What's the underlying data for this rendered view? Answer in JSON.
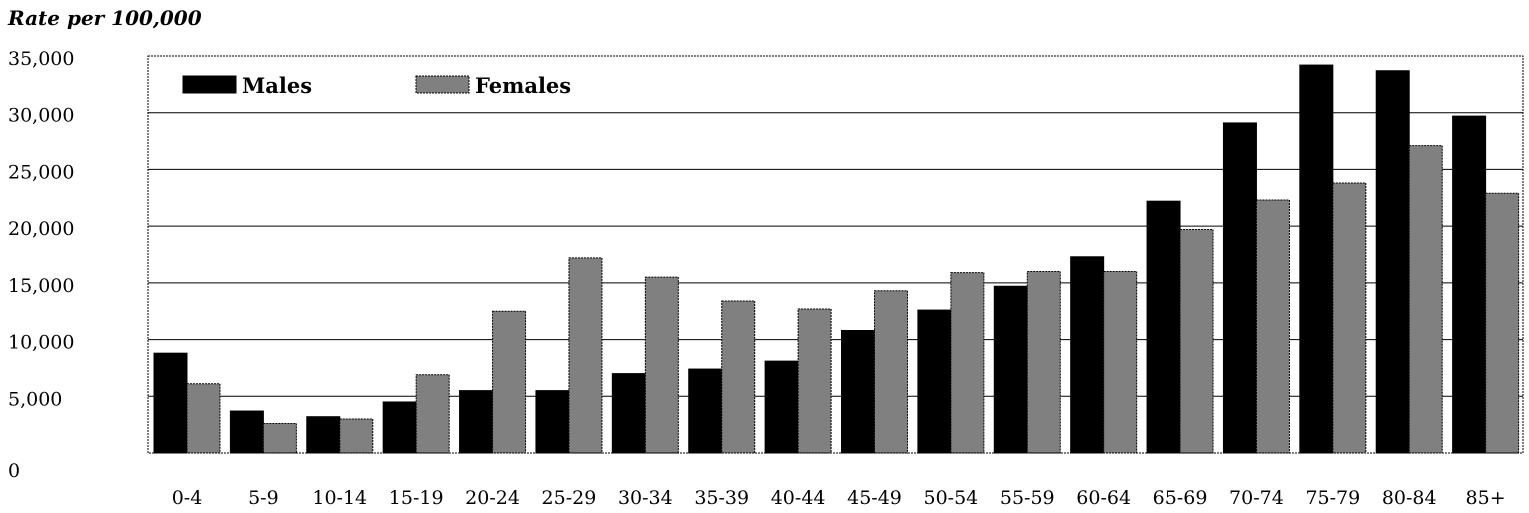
{
  "chart_data": {
    "type": "bar",
    "title": "",
    "unit_label": "Rate per 100,000",
    "xlabel": "",
    "ylabel": "",
    "ylim": [
      0,
      35000
    ],
    "ytick_labels": [
      "0",
      "5,000",
      "10,000",
      "15,000",
      "20,000",
      "25,000",
      "30,000",
      "35,000"
    ],
    "yticks": [
      0,
      5000,
      10000,
      15000,
      20000,
      25000,
      30000,
      35000
    ],
    "grid": true,
    "legend_position": "top-left",
    "categories": [
      "0-4",
      "5-9",
      "10-14",
      "15-19",
      "20-24",
      "25-29",
      "30-34",
      "35-39",
      "40-44",
      "45-49",
      "50-54",
      "55-59",
      "60-64",
      "65-69",
      "70-74",
      "75-79",
      "80-84",
      "85+"
    ],
    "series": [
      {
        "name": "Males",
        "color": "#000000",
        "values": [
          8800,
          3700,
          3200,
          4500,
          5500,
          5500,
          7000,
          7400,
          8100,
          10800,
          12600,
          14700,
          17300,
          22200,
          29100,
          34200,
          33700,
          29700
        ]
      },
      {
        "name": "Females",
        "color": "#808080",
        "values": [
          6100,
          2600,
          3000,
          6900,
          12500,
          17200,
          15500,
          13400,
          12700,
          14300,
          15900,
          16000,
          16000,
          19700,
          22300,
          23800,
          27100,
          22900
        ]
      }
    ]
  }
}
